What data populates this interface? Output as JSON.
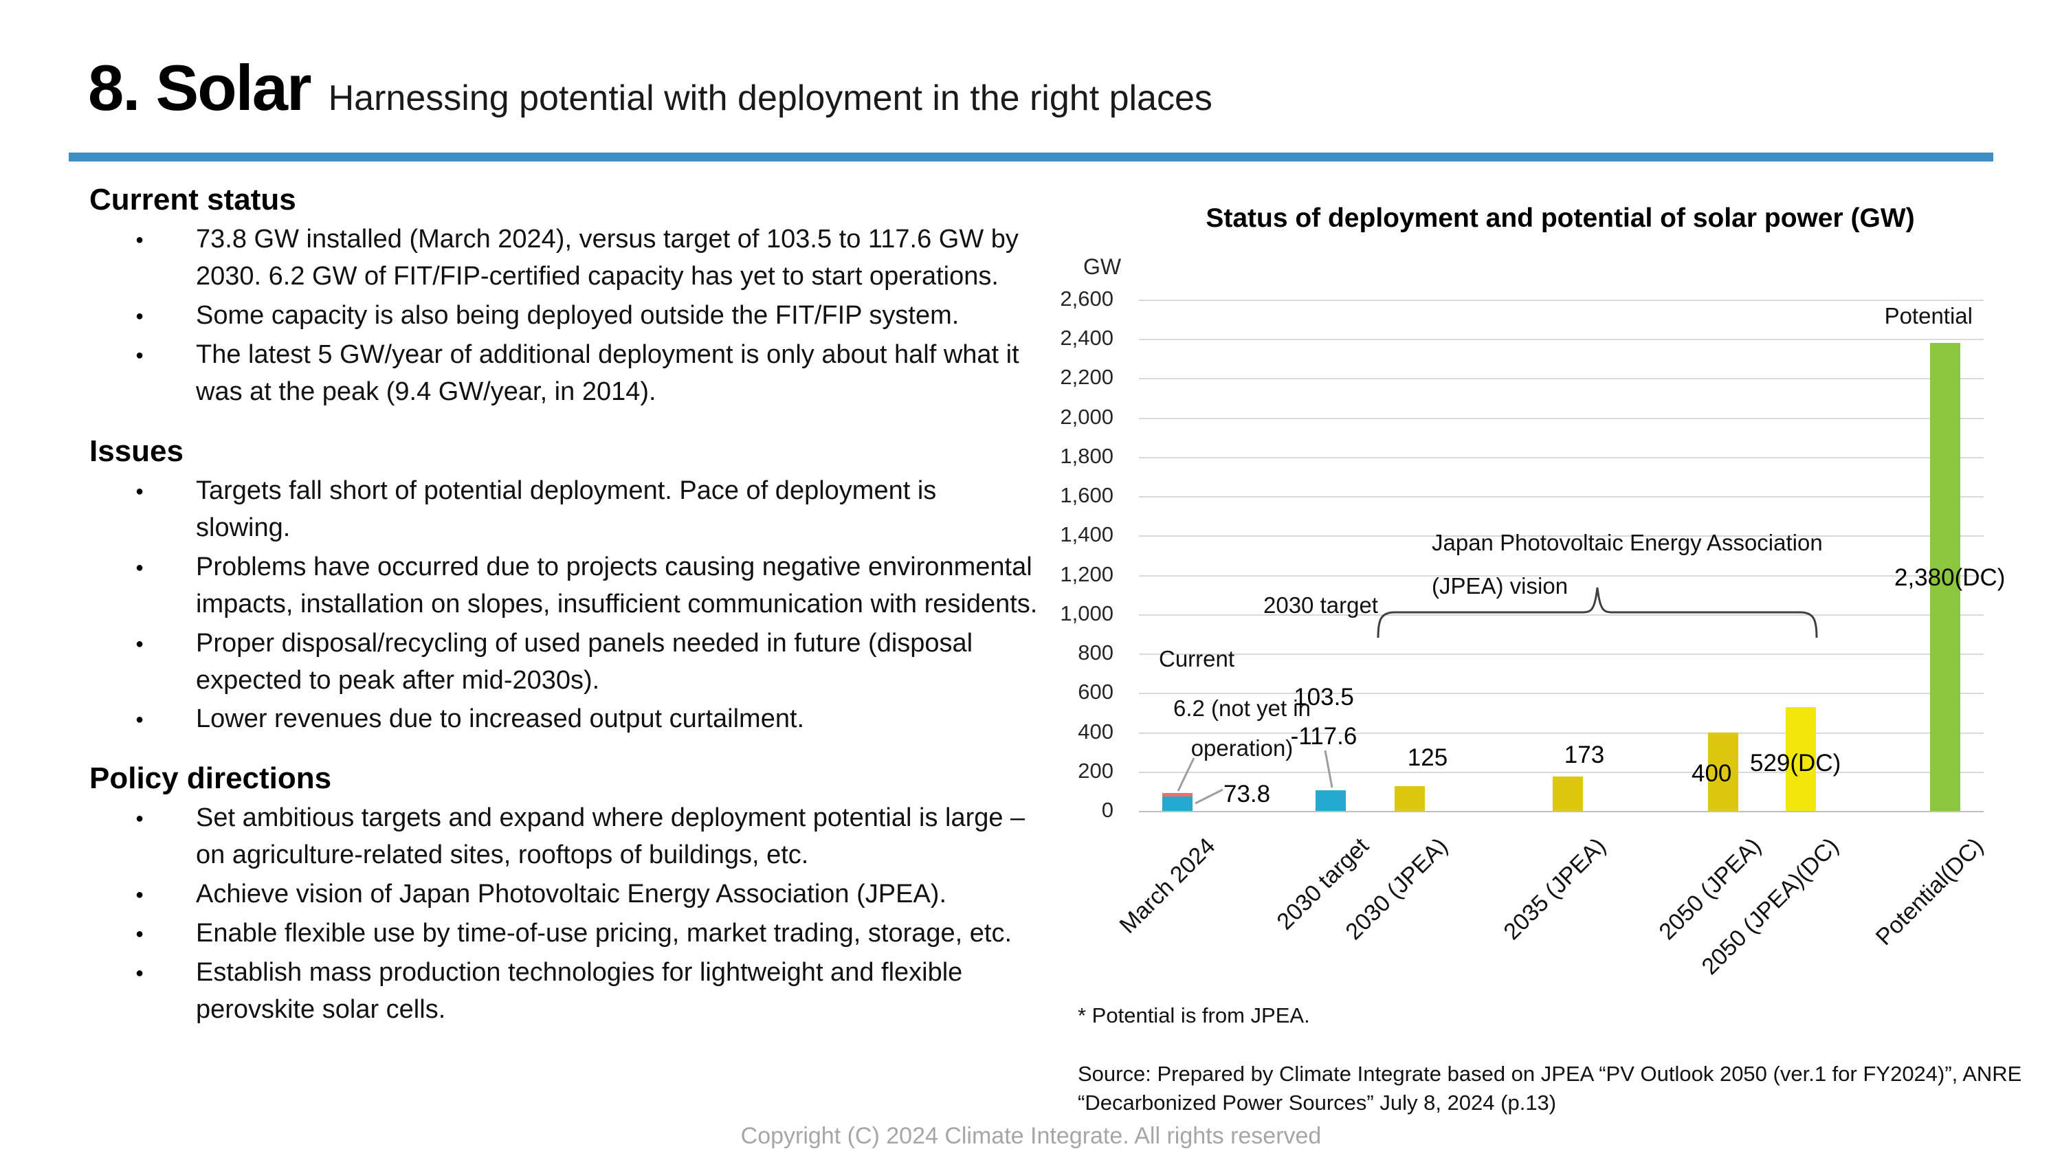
{
  "header": {
    "title": "8. Solar",
    "subtitle": "Harnessing potential with deployment in the right places"
  },
  "left_column": {
    "sections": [
      {
        "heading": "Current status",
        "bullets": [
          "73.8 GW installed (March 2024), versus target of 103.5 to 117.6 GW by 2030. 6.2 GW of FIT/FIP-certified capacity has yet to start operations.",
          "Some capacity is also being deployed outside the FIT/FIP system.",
          "The latest 5 GW/year of additional deployment is only about half what it was at the peak (9.4 GW/year, in 2014)."
        ]
      },
      {
        "heading": "Issues",
        "bullets": [
          "Targets fall short of potential deployment. Pace of deployment is slowing.",
          "Problems have occurred due to projects causing negative environmental impacts, installation on slopes, insufficient communication with residents.",
          "Proper disposal/recycling of used panels needed in future (disposal expected to peak after mid-2030s).",
          "Lower revenues due to increased output curtailment."
        ]
      },
      {
        "heading": "Policy directions",
        "bullets": [
          "Set ambitious targets and expand where deployment potential is large – on agriculture-related sites, rooftops of buildings, etc.",
          "Achieve vision of Japan Photovoltaic Energy Association (JPEA).",
          "Enable flexible use by time-of-use pricing, market trading, storage, etc.",
          "Establish mass production technologies for lightweight and flexible perovskite solar cells."
        ]
      }
    ]
  },
  "chart_data": {
    "type": "bar",
    "title": "Status of deployment and potential of solar power (GW)",
    "unit_label": "GW",
    "y_axis": {
      "min": 0,
      "max": 2600,
      "step": 200,
      "tick_labels": [
        "0",
        "200",
        "400",
        "600",
        "800",
        "1,000",
        "1,200",
        "1,400",
        "1,600",
        "1,800",
        "2,000",
        "2,200",
        "2,400",
        "2,600"
      ]
    },
    "bars": [
      {
        "category": "March 2024",
        "value": 73.8,
        "value_label": "73.8",
        "color": "#24A9D1",
        "overlay": {
          "value": 6.2,
          "color": "#F2705C",
          "note": "6.2 (not yet in operation)"
        }
      },
      {
        "category": "2030 target",
        "value": 103.5,
        "value_label": "103.5\n-117.6",
        "color": "#24A9D1"
      },
      {
        "category": "2030 (JPEA)",
        "value": 125,
        "value_label": "125",
        "color": "#DEC70F"
      },
      {
        "category": "2035 (JPEA)",
        "value": 173,
        "value_label": "173",
        "color": "#DEC70F"
      },
      {
        "category": "2050 (JPEA)",
        "value": 400,
        "value_label": "400",
        "color": "#DEC70F"
      },
      {
        "category": "2050 (JPEA)(DC)",
        "value": 529,
        "value_label": "529(DC)",
        "color": "#F2E70C"
      },
      {
        "category": "Potential(DC)",
        "value": 2380,
        "value_label": "2,380(DC)",
        "color": "#8CC63F"
      }
    ],
    "annotations": {
      "current": "Current",
      "target_2030": "2030 target",
      "jpea_vision": "Japan Photovoltaic Energy Association\n(JPEA) vision",
      "not_yet": "6.2 (not yet in\noperation)",
      "potential": "Potential"
    },
    "footnote": "* Potential is from JPEA.",
    "source": "Source: Prepared by Climate Integrate based on JPEA “PV Outlook 2050 (ver.1 for FY2024)”, ANRE\n“Decarbonized Power Sources” July 8, 2024 (p.13)",
    "legend": null,
    "grid": true
  },
  "footer": {
    "copyright": "Copyright (C) 2024 Climate Integrate. All rights reserved"
  },
  "colors": {
    "header_rule": "#3E8EC6",
    "deployed_cyan": "#24A9D1",
    "not_operating_red": "#F2705C",
    "jpea_gold": "#DEC70F",
    "jpea_dc_yellow": "#F2E70C",
    "potential_green": "#8CC63F",
    "gridline": "#D9D9D9",
    "leader_line": "#9E9E9E",
    "copyright_gray": "#A6A6A6"
  }
}
